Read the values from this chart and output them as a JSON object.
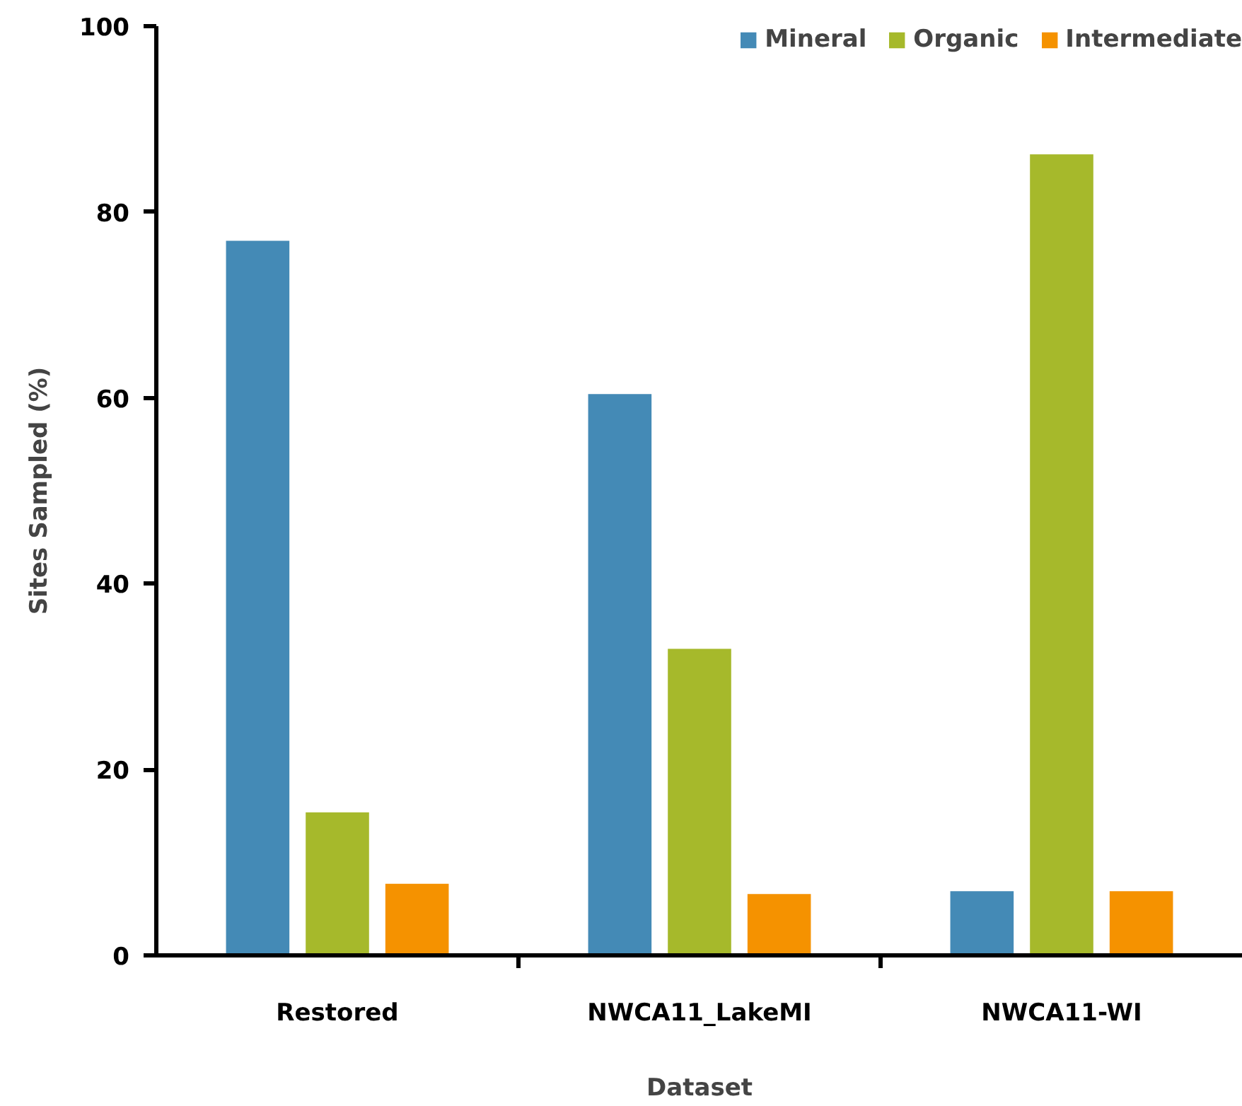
{
  "chart_data": {
    "type": "bar",
    "xlabel": "Dataset",
    "ylabel": "Sites Sampled (%)",
    "categories": [
      "Restored",
      "NWCA11_LakeMI",
      "NWCA11-WI"
    ],
    "series": [
      {
        "name": "Mineral",
        "color": "#448ab6",
        "values": [
          76.9,
          60.4,
          6.9
        ]
      },
      {
        "name": "Organic",
        "color": "#a6b92b",
        "values": [
          15.4,
          33.0,
          86.2
        ]
      },
      {
        "name": "Intermediate",
        "color": "#f59200",
        "values": [
          7.7,
          6.6,
          6.9
        ]
      }
    ],
    "ylim": [
      0,
      100
    ],
    "yticks": [
      0,
      20,
      40,
      60,
      80,
      100
    ],
    "grid": false,
    "legend": "top right"
  }
}
